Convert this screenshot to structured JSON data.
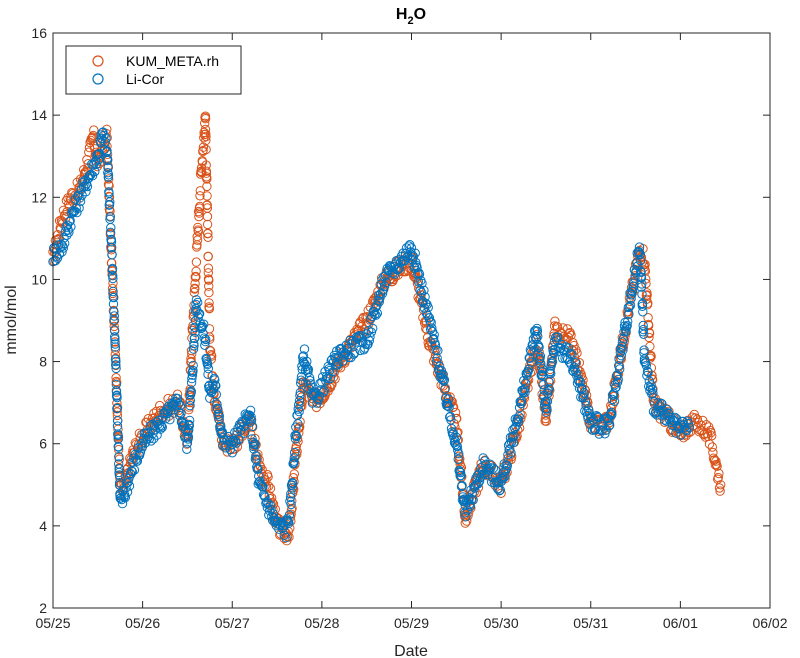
{
  "chart_data": {
    "type": "scatter",
    "title": {
      "main": "H",
      "sub": "2",
      "end": "O"
    },
    "xlabel": "Date",
    "ylabel": "mmol/mol",
    "xlim": [
      "05/25",
      "06/02"
    ],
    "ylim": [
      2,
      16
    ],
    "x_ticks": [
      "05/25",
      "05/26",
      "05/27",
      "05/28",
      "05/29",
      "05/30",
      "05/31",
      "06/01",
      "06/02"
    ],
    "y_ticks": [
      2,
      4,
      6,
      8,
      10,
      12,
      14,
      16
    ],
    "legend": {
      "position": "top-left"
    },
    "grid": false,
    "marker": "open-circle",
    "series": [
      {
        "name": "KUM_META.rh",
        "color": "#D95319",
        "x_day_offset": [
          0.0,
          0.1,
          0.2,
          0.3,
          0.4,
          0.45,
          0.5,
          0.6,
          0.7,
          0.75,
          0.8,
          0.9,
          1.0,
          1.2,
          1.4,
          1.5,
          1.55,
          1.6,
          1.65,
          1.7,
          1.75,
          1.8,
          1.9,
          2.0,
          2.2,
          2.3,
          2.4,
          2.5,
          2.6,
          2.65,
          2.7,
          2.8,
          2.9,
          3.0,
          3.2,
          3.5,
          3.7,
          4.0,
          4.2,
          4.5,
          4.6,
          4.8,
          5.0,
          5.2,
          5.4,
          5.5,
          5.6,
          5.8,
          6.0,
          6.2,
          6.4,
          6.55,
          6.6,
          6.7,
          6.9,
          7.0,
          7.1,
          7.2,
          7.3,
          7.35,
          7.45
        ],
        "y": [
          10.5,
          11.5,
          12.0,
          12.2,
          13.0,
          13.5,
          12.8,
          13.5,
          8.0,
          4.8,
          5.0,
          5.8,
          6.2,
          6.8,
          7.0,
          6.0,
          8.5,
          10.5,
          12.5,
          14.0,
          8.5,
          7.2,
          6.0,
          6.0,
          6.5,
          5.5,
          5.0,
          4.0,
          3.8,
          4.0,
          5.5,
          7.5,
          7.0,
          7.2,
          8.0,
          9.0,
          10.0,
          10.5,
          8.5,
          6.5,
          4.2,
          5.5,
          5.0,
          6.5,
          8.5,
          6.5,
          8.8,
          8.5,
          6.5,
          6.5,
          9.0,
          10.8,
          10.5,
          7.0,
          6.5,
          6.2,
          6.5,
          6.5,
          6.3,
          6.0,
          5.0
        ]
      },
      {
        "name": "Li-Cor",
        "color": "#0072BD",
        "x_day_offset": [
          0.0,
          0.1,
          0.2,
          0.3,
          0.4,
          0.5,
          0.55,
          0.6,
          0.65,
          0.7,
          0.75,
          0.8,
          0.9,
          1.0,
          1.2,
          1.4,
          1.5,
          1.55,
          1.6,
          1.65,
          1.7,
          1.75,
          1.8,
          1.9,
          2.0,
          2.2,
          2.3,
          2.4,
          2.5,
          2.6,
          2.65,
          2.7,
          2.8,
          2.9,
          3.0,
          3.2,
          3.5,
          3.7,
          4.0,
          4.2,
          4.5,
          4.6,
          4.8,
          5.0,
          5.2,
          5.4,
          5.5,
          5.6,
          5.8,
          6.0,
          6.2,
          6.4,
          6.55,
          6.6,
          6.7,
          6.9,
          7.0,
          7.1
        ],
        "y": [
          10.6,
          10.8,
          11.5,
          12.0,
          12.5,
          13.0,
          13.5,
          13.2,
          11.0,
          8.0,
          4.5,
          4.8,
          5.5,
          6.0,
          6.5,
          7.0,
          6.0,
          7.5,
          9.5,
          9.0,
          8.5,
          7.2,
          7.5,
          6.0,
          6.0,
          6.7,
          5.0,
          4.5,
          4.0,
          3.9,
          4.5,
          6.0,
          8.2,
          7.0,
          7.4,
          8.2,
          8.5,
          10.0,
          10.8,
          9.0,
          6.0,
          4.3,
          5.5,
          5.0,
          6.8,
          8.8,
          6.8,
          8.5,
          8.0,
          6.5,
          6.4,
          9.0,
          10.8,
          8.0,
          7.0,
          6.5,
          6.3,
          6.4
        ]
      }
    ]
  }
}
